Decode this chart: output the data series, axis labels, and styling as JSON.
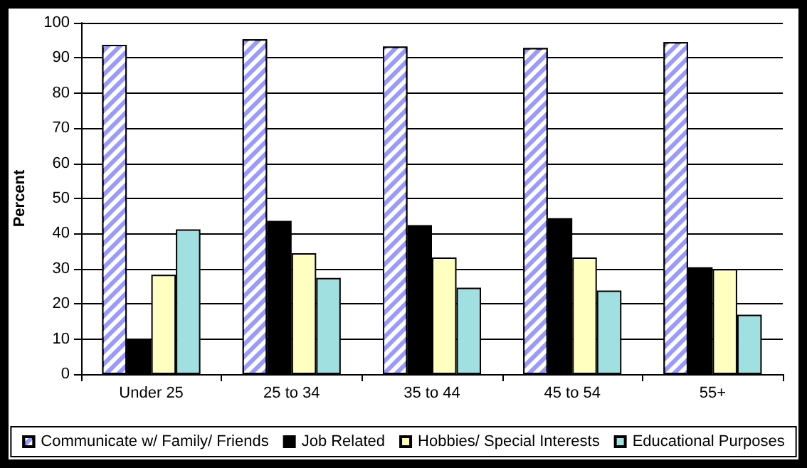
{
  "chart_data": {
    "type": "bar",
    "ylabel": "Percent",
    "categories": [
      "Under 25",
      "25 to 34",
      "35 to 44",
      "45 to 54",
      "55+"
    ],
    "series": [
      {
        "name": "Communicate w/ Family/ Friends",
        "color": "#9999ff",
        "values": [
          93.7,
          95.3,
          93.2,
          92.8,
          94.5
        ]
      },
      {
        "name": "Job Related",
        "color": "#000000",
        "values": [
          10,
          43.6,
          42.4,
          44.4,
          30.4
        ]
      },
      {
        "name": "Hobbies/ Special Interests",
        "color": "#ffffc0",
        "values": [
          28.3,
          34.4,
          33.2,
          33.2,
          29.9
        ]
      },
      {
        "name": "Educational Purposes",
        "color": "#a0e0e0",
        "values": [
          41.2,
          27.4,
          24.6,
          23.8,
          16.9
        ]
      }
    ],
    "ylim": [
      0,
      100
    ],
    "yticks": [
      0,
      10,
      20,
      30,
      40,
      50,
      60,
      70,
      80,
      90,
      100
    ],
    "grid": "y",
    "legend": "bottom"
  }
}
